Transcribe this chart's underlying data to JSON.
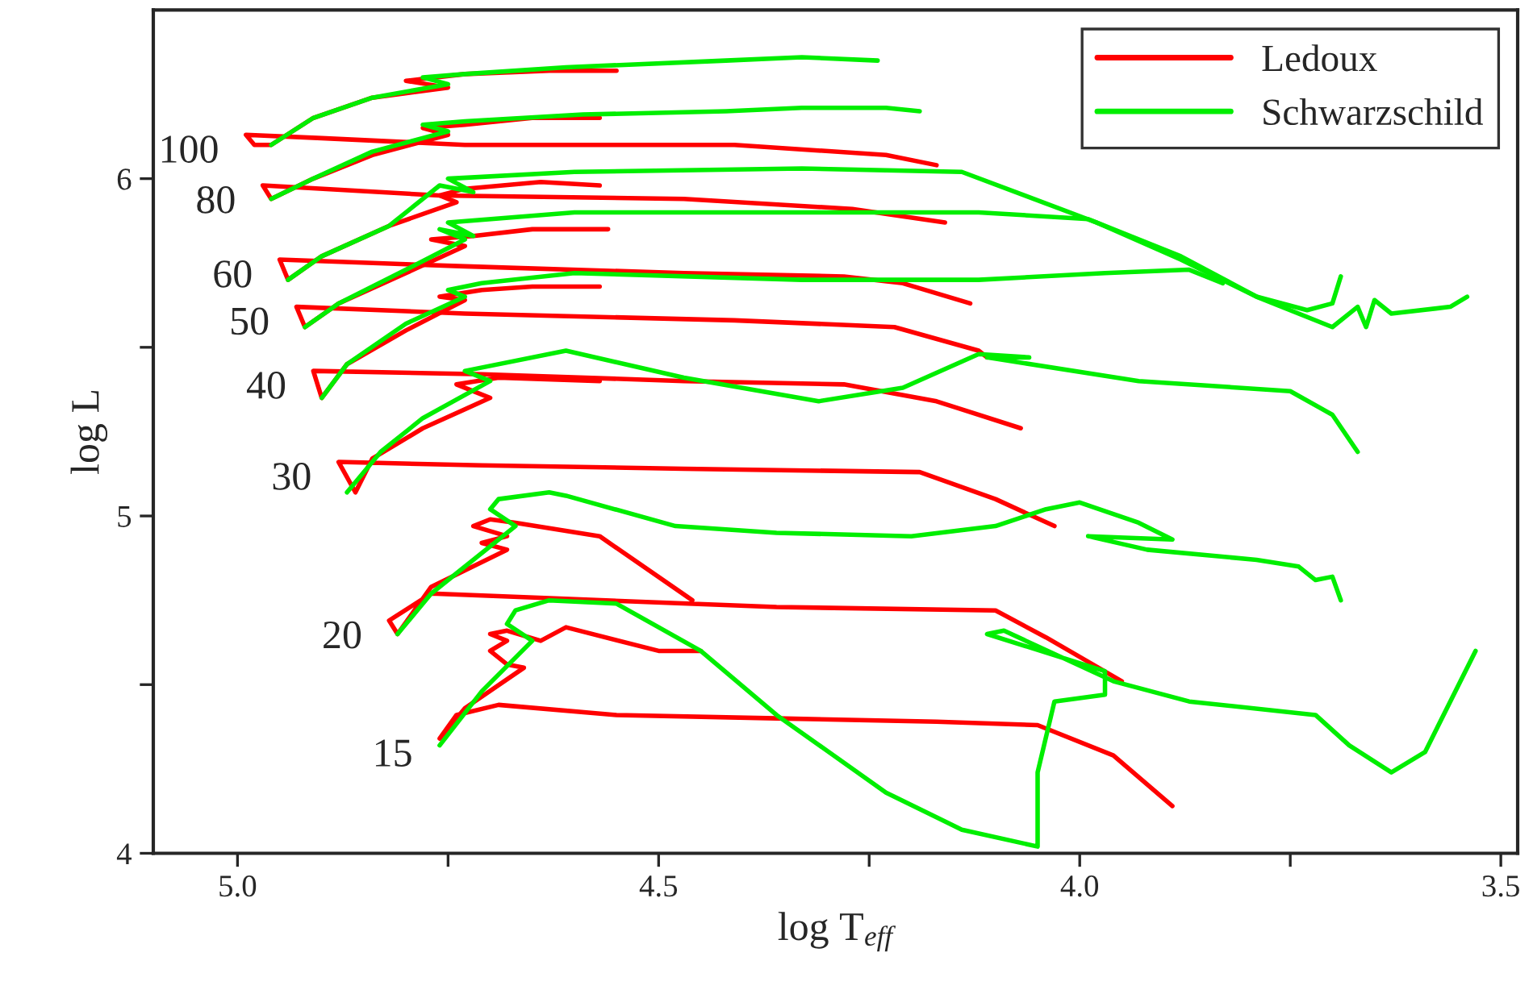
{
  "chart_data": {
    "type": "line",
    "xlabel": "log T$_{eff}$",
    "ylabel": "log L",
    "xlim": [
      5.1,
      3.48
    ],
    "ylim": [
      4.0,
      6.5
    ],
    "xticks": [
      {
        "value": 5.0,
        "label": "5.0"
      },
      {
        "value": 4.75,
        "label": null
      },
      4.5,
      {
        "value": 4.25,
        "label": null
      },
      {
        "value": 4.0,
        "label": "4.0"
      },
      {
        "value": 3.75,
        "label": null
      },
      3.5
    ],
    "yticks": [
      4,
      {
        "value": 4.5,
        "label": null
      },
      5,
      {
        "value": 5.5,
        "label": null
      },
      6
    ],
    "grid": false,
    "legend": "top right",
    "line_style": "solid",
    "annotations": [
      "100",
      "80",
      "60",
      "50",
      "40",
      "30",
      "20",
      "15"
    ],
    "series": [
      {
        "name": "Ledoux",
        "color": "#ff0000",
        "x": [
          4.55,
          4.63,
          4.73,
          4.8,
          4.75,
          4.84,
          4.91,
          4.96,
          4.98,
          4.99,
          4.9,
          4.73,
          4.41,
          4.23,
          4.17
        ],
        "values": [
          6.32,
          6.32,
          6.31,
          6.29,
          6.27,
          6.24,
          6.18,
          6.1,
          6.1,
          6.13,
          6.12,
          6.1,
          6.1,
          6.07,
          6.04
        ]
      },
      {
        "name": "Schwarzschild",
        "color": "#00ee00",
        "x": [
          4.96,
          4.91,
          4.84,
          4.75,
          4.78,
          4.73,
          4.61,
          4.42,
          4.33,
          4.24
        ],
        "values": [
          6.1,
          6.18,
          6.24,
          6.28,
          6.3,
          6.31,
          6.33,
          6.35,
          6.36,
          6.35
        ]
      },
      {
        "color": "#ff0000",
        "x": [
          4.57,
          4.65,
          4.73,
          4.78,
          4.75,
          4.84,
          4.91,
          4.96,
          4.97,
          4.76,
          4.47,
          4.27,
          4.16
        ],
        "values": [
          6.18,
          6.18,
          6.16,
          6.15,
          6.13,
          6.07,
          6.0,
          5.94,
          5.98,
          5.95,
          5.94,
          5.91,
          5.87
        ]
      },
      {
        "color": "#00ee00",
        "x": [
          4.96,
          4.91,
          4.84,
          4.75,
          4.78,
          4.73,
          4.59,
          4.42,
          4.33,
          4.23,
          4.19
        ],
        "values": [
          5.94,
          6.0,
          6.08,
          6.14,
          6.16,
          6.17,
          6.19,
          6.2,
          6.21,
          6.21,
          6.2
        ]
      },
      {
        "color": "#ff0000",
        "x": [
          4.57,
          4.64,
          4.73,
          4.76,
          4.74,
          4.82,
          4.9,
          4.94,
          4.95,
          4.73,
          4.47,
          4.28,
          4.21,
          4.13
        ],
        "values": [
          5.98,
          5.99,
          5.97,
          5.95,
          5.93,
          5.86,
          5.77,
          5.7,
          5.76,
          5.74,
          5.72,
          5.71,
          5.69,
          5.63
        ]
      },
      {
        "color": "#00ee00",
        "x": [
          4.94,
          4.9,
          4.82,
          4.76,
          4.72,
          4.75,
          4.6,
          4.33,
          4.14,
          3.98,
          3.88,
          3.79,
          3.73,
          3.7,
          3.69
        ],
        "values": [
          5.7,
          5.77,
          5.86,
          5.98,
          5.96,
          6.0,
          6.02,
          6.03,
          6.02,
          5.87,
          5.76,
          5.65,
          5.61,
          5.63,
          5.71
        ]
      },
      {
        "color": "#ff0000",
        "x": [
          4.56,
          4.65,
          4.72,
          4.77,
          4.73,
          4.8,
          4.88,
          4.92,
          4.93,
          4.73,
          4.41,
          4.22,
          4.12,
          4.11
        ],
        "values": [
          5.85,
          5.85,
          5.83,
          5.82,
          5.8,
          5.72,
          5.63,
          5.56,
          5.62,
          5.6,
          5.58,
          5.56,
          5.49,
          5.47
        ]
      },
      {
        "color": "#00ee00",
        "x": [
          4.92,
          4.88,
          4.8,
          4.73,
          4.76,
          4.72,
          4.75,
          4.6,
          4.33,
          4.12,
          3.99,
          3.88,
          3.79,
          3.7,
          3.67,
          3.66,
          3.65,
          3.63,
          3.56,
          3.54
        ],
        "values": [
          5.56,
          5.63,
          5.73,
          5.82,
          5.85,
          5.83,
          5.87,
          5.9,
          5.9,
          5.9,
          5.88,
          5.77,
          5.65,
          5.56,
          5.62,
          5.56,
          5.64,
          5.6,
          5.62,
          5.65
        ]
      },
      {
        "color": "#ff0000",
        "x": [
          4.57,
          4.65,
          4.71,
          4.76,
          4.73,
          4.8,
          4.87,
          4.9,
          4.91,
          4.71,
          4.47,
          4.28,
          4.17,
          4.07
        ],
        "values": [
          5.68,
          5.68,
          5.67,
          5.65,
          5.64,
          5.55,
          5.45,
          5.35,
          5.43,
          5.42,
          5.4,
          5.39,
          5.34,
          5.26
        ]
      },
      {
        "color": "#00ee00",
        "x": [
          4.9,
          4.87,
          4.8,
          4.73,
          4.75,
          4.71,
          4.6,
          4.33,
          4.12,
          3.97,
          3.87,
          3.83
        ],
        "values": [
          5.35,
          5.45,
          5.57,
          5.65,
          5.67,
          5.69,
          5.72,
          5.7,
          5.7,
          5.72,
          5.73,
          5.69
        ]
      },
      {
        "color": "#ff0000",
        "x": [
          4.57,
          4.69,
          4.74,
          4.7,
          4.78,
          4.84,
          4.86,
          4.88,
          4.71,
          4.47,
          4.19,
          4.1,
          4.03
        ],
        "values": [
          5.4,
          5.41,
          5.39,
          5.35,
          5.26,
          5.17,
          5.07,
          5.16,
          5.15,
          5.14,
          5.13,
          5.05,
          4.97
        ]
      },
      {
        "color": "#00ee00",
        "x": [
          4.87,
          4.83,
          4.78,
          4.7,
          4.73,
          4.61,
          4.47,
          4.31,
          4.21,
          4.12,
          4.06,
          4.11,
          3.93,
          3.75,
          3.7,
          3.67
        ],
        "values": [
          5.07,
          5.19,
          5.29,
          5.4,
          5.43,
          5.49,
          5.41,
          5.34,
          5.38,
          5.48,
          5.47,
          5.47,
          5.4,
          5.37,
          5.3,
          5.19
        ]
      },
      {
        "color": "#ff0000",
        "x": [
          4.46,
          4.57,
          4.67,
          4.7,
          4.72,
          4.68,
          4.71,
          4.68,
          4.77,
          4.81,
          4.82,
          4.77,
          4.36,
          4.1,
          4.04,
          3.95
        ],
        "values": [
          4.75,
          4.94,
          4.98,
          4.99,
          4.97,
          4.94,
          4.92,
          4.9,
          4.79,
          4.65,
          4.69,
          4.77,
          4.73,
          4.72,
          4.64,
          4.51
        ]
      },
      {
        "color": "#00ee00",
        "x": [
          4.81,
          4.77,
          4.67,
          4.7,
          4.69,
          4.63,
          4.61,
          4.48,
          4.36,
          4.2,
          4.1,
          4.04,
          4.0,
          3.93,
          3.89,
          3.99,
          3.92,
          3.79,
          3.74,
          3.72,
          3.7,
          3.69
        ],
        "values": [
          4.65,
          4.77,
          4.97,
          5.02,
          5.05,
          5.07,
          5.06,
          4.97,
          4.95,
          4.94,
          4.97,
          5.02,
          5.04,
          4.98,
          4.93,
          4.94,
          4.9,
          4.87,
          4.85,
          4.81,
          4.82,
          4.75
        ]
      },
      {
        "color": "#ff0000",
        "x": [
          4.45,
          4.5,
          4.61,
          4.64,
          4.68,
          4.7,
          4.68,
          4.7,
          4.68,
          4.66,
          4.73,
          4.76,
          4.74,
          4.69,
          4.55,
          4.36,
          4.17,
          4.05,
          3.96,
          3.89
        ],
        "values": [
          4.6,
          4.6,
          4.67,
          4.63,
          4.66,
          4.65,
          4.63,
          4.6,
          4.56,
          4.55,
          4.43,
          4.34,
          4.41,
          4.44,
          4.41,
          4.4,
          4.39,
          4.38,
          4.29,
          4.14
        ]
      },
      {
        "color": "#00ee00",
        "x": [
          4.76,
          4.71,
          4.65,
          4.68,
          4.67,
          4.63,
          4.55,
          4.45,
          4.36,
          4.23,
          4.14,
          4.05,
          4.05,
          4.03,
          3.97,
          3.97,
          4.11,
          4.09,
          3.96,
          3.87,
          3.72,
          3.68,
          3.63,
          3.59,
          3.53
        ],
        "values": [
          4.32,
          4.48,
          4.63,
          4.68,
          4.72,
          4.75,
          4.74,
          4.6,
          4.41,
          4.18,
          4.07,
          4.02,
          4.24,
          4.45,
          4.47,
          4.54,
          4.65,
          4.66,
          4.51,
          4.45,
          4.41,
          4.32,
          4.24,
          4.3,
          4.6
        ]
      }
    ]
  }
}
